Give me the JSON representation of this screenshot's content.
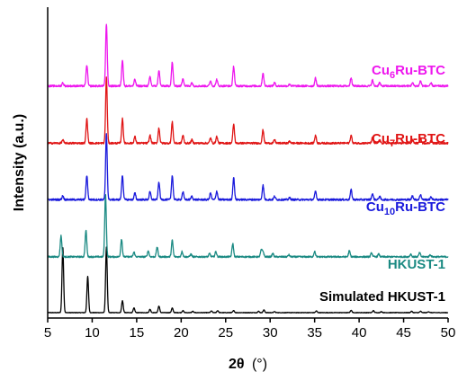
{
  "chart_data": {
    "type": "line",
    "xlabel_symbol": "2θ",
    "xlabel_unit": "(°)",
    "ylabel": "Intensity (a.u.)",
    "xlim": [
      5,
      50
    ],
    "xticks": [
      "5",
      "10",
      "15",
      "20",
      "25",
      "30",
      "35",
      "40",
      "45",
      "50"
    ],
    "grid": false,
    "legend": "inline labels above each trace",
    "series": [
      {
        "name": "Simulated HKUST-1",
        "label_base": "Simulated HKUST-1",
        "label_sub": "",
        "label_tail": "",
        "color": "#000000",
        "baseline": 0,
        "noise": 0.004,
        "peaks": [
          [
            6.7,
            0.99
          ],
          [
            9.5,
            0.55
          ],
          [
            11.6,
            1.0
          ],
          [
            13.4,
            0.18
          ],
          [
            14.7,
            0.07
          ],
          [
            16.5,
            0.05
          ],
          [
            17.5,
            0.1
          ],
          [
            19.0,
            0.07
          ],
          [
            20.2,
            0.03
          ],
          [
            21.3,
            0.02
          ],
          [
            23.4,
            0.025
          ],
          [
            24.1,
            0.03
          ],
          [
            25.9,
            0.03
          ],
          [
            28.7,
            0.02
          ],
          [
            29.3,
            0.04
          ],
          [
            30.5,
            0.015
          ],
          [
            35.2,
            0.025
          ],
          [
            39.1,
            0.035
          ],
          [
            41.6,
            0.03
          ],
          [
            42.5,
            0.015
          ],
          [
            45.9,
            0.02
          ],
          [
            46.9,
            0.02
          ],
          [
            47.8,
            0.015
          ]
        ]
      },
      {
        "name": "HKUST-1",
        "label_base": "HKUST-1",
        "label_sub": "",
        "label_tail": "",
        "color": "#1b8a83",
        "baseline": 0.85,
        "noise": 0.012,
        "peaks": [
          [
            6.5,
            0.32
          ],
          [
            9.3,
            0.4
          ],
          [
            11.5,
            0.95
          ],
          [
            13.3,
            0.27
          ],
          [
            14.7,
            0.07
          ],
          [
            16.3,
            0.09
          ],
          [
            17.3,
            0.15
          ],
          [
            19.0,
            0.25
          ],
          [
            20.1,
            0.08
          ],
          [
            21.1,
            0.04
          ],
          [
            23.2,
            0.05
          ],
          [
            23.9,
            0.08
          ],
          [
            25.8,
            0.2
          ],
          [
            29.0,
            0.1
          ],
          [
            29.2,
            0.08
          ],
          [
            30.3,
            0.05
          ],
          [
            32.1,
            0.03
          ],
          [
            35.0,
            0.08
          ],
          [
            38.9,
            0.09
          ],
          [
            41.4,
            0.06
          ],
          [
            42.2,
            0.04
          ],
          [
            45.8,
            0.04
          ],
          [
            46.8,
            0.06
          ],
          [
            48.0,
            0.03
          ]
        ]
      },
      {
        "name": "Cu10Ru-BTC",
        "label_base": "Cu",
        "label_sub": "10",
        "label_tail": "Ru-BTC",
        "color": "#1a1adc",
        "baseline": 1.72,
        "noise": 0.014,
        "peaks": [
          [
            6.7,
            0.06
          ],
          [
            9.4,
            0.37
          ],
          [
            11.6,
            1.0
          ],
          [
            13.4,
            0.37
          ],
          [
            14.8,
            0.1
          ],
          [
            16.5,
            0.12
          ],
          [
            17.5,
            0.27
          ],
          [
            19.0,
            0.37
          ],
          [
            20.2,
            0.12
          ],
          [
            21.2,
            0.05
          ],
          [
            23.3,
            0.1
          ],
          [
            24.0,
            0.13
          ],
          [
            25.9,
            0.34
          ],
          [
            29.2,
            0.22
          ],
          [
            30.5,
            0.05
          ],
          [
            32.2,
            0.03
          ],
          [
            35.1,
            0.13
          ],
          [
            39.1,
            0.15
          ],
          [
            41.5,
            0.09
          ],
          [
            42.3,
            0.05
          ],
          [
            46.0,
            0.06
          ],
          [
            46.9,
            0.08
          ],
          [
            48.1,
            0.04
          ]
        ]
      },
      {
        "name": "Cu7Ru-BTC",
        "label_base": "Cu",
        "label_sub": "7",
        "label_tail": "Ru-BTC",
        "color": "#e01414",
        "baseline": 2.58,
        "noise": 0.014,
        "peaks": [
          [
            6.7,
            0.05
          ],
          [
            9.4,
            0.37
          ],
          [
            11.6,
            1.0
          ],
          [
            13.4,
            0.37
          ],
          [
            14.8,
            0.1
          ],
          [
            16.5,
            0.12
          ],
          [
            17.5,
            0.23
          ],
          [
            19.0,
            0.32
          ],
          [
            20.2,
            0.12
          ],
          [
            21.2,
            0.05
          ],
          [
            23.3,
            0.08
          ],
          [
            24.0,
            0.1
          ],
          [
            25.9,
            0.29
          ],
          [
            29.2,
            0.2
          ],
          [
            30.5,
            0.05
          ],
          [
            32.2,
            0.03
          ],
          [
            35.1,
            0.12
          ],
          [
            39.1,
            0.12
          ],
          [
            41.5,
            0.08
          ],
          [
            42.3,
            0.05
          ],
          [
            46.0,
            0.05
          ],
          [
            46.9,
            0.07
          ],
          [
            48.1,
            0.04
          ]
        ]
      },
      {
        "name": "Cu6Ru-BTC",
        "label_base": "Cu",
        "label_sub": "6",
        "label_tail": "Ru-BTC",
        "color": "#ee16ee",
        "baseline": 3.45,
        "noise": 0.014,
        "peaks": [
          [
            6.7,
            0.05
          ],
          [
            9.4,
            0.32
          ],
          [
            11.6,
            0.95
          ],
          [
            13.4,
            0.4
          ],
          [
            14.8,
            0.1
          ],
          [
            16.5,
            0.14
          ],
          [
            17.5,
            0.24
          ],
          [
            19.0,
            0.36
          ],
          [
            20.2,
            0.12
          ],
          [
            21.2,
            0.05
          ],
          [
            23.3,
            0.08
          ],
          [
            24.0,
            0.1
          ],
          [
            25.9,
            0.3
          ],
          [
            29.2,
            0.2
          ],
          [
            30.5,
            0.05
          ],
          [
            32.2,
            0.03
          ],
          [
            35.1,
            0.12
          ],
          [
            39.1,
            0.13
          ],
          [
            41.5,
            0.09
          ],
          [
            42.3,
            0.05
          ],
          [
            46.0,
            0.05
          ],
          [
            46.9,
            0.08
          ],
          [
            48.1,
            0.04
          ]
        ]
      }
    ]
  }
}
